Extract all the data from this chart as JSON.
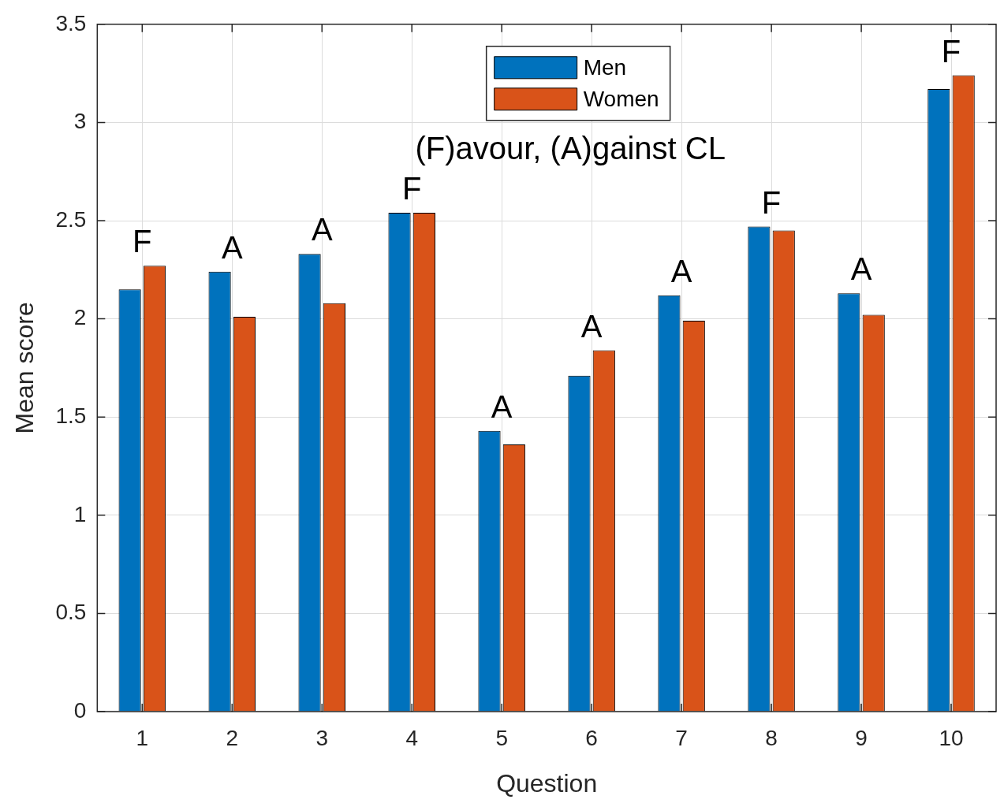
{
  "chart_data": {
    "type": "bar",
    "xlabel": "Question",
    "ylabel": "Mean score",
    "categories": [
      "1",
      "2",
      "3",
      "4",
      "5",
      "6",
      "7",
      "8",
      "9",
      "10"
    ],
    "series": [
      {
        "name": "Men",
        "color": "#0072bd",
        "values": [
          2.15,
          2.24,
          2.33,
          2.54,
          1.43,
          1.71,
          2.12,
          2.47,
          2.13,
          3.17
        ]
      },
      {
        "name": "Women",
        "color": "#d95319",
        "values": [
          2.27,
          2.01,
          2.08,
          2.54,
          1.36,
          1.84,
          1.99,
          2.45,
          2.02,
          3.24
        ]
      }
    ],
    "ylim": [
      0,
      3.5
    ],
    "yticks": [
      0,
      0.5,
      1,
      1.5,
      2,
      2.5,
      3,
      3.5
    ],
    "grid": true,
    "legend": "top",
    "annotations": [
      "F",
      "A",
      "A",
      "F",
      "A",
      "A",
      "A",
      "F",
      "A",
      "F",
      "(F)avour, (A)gainst CL"
    ]
  }
}
